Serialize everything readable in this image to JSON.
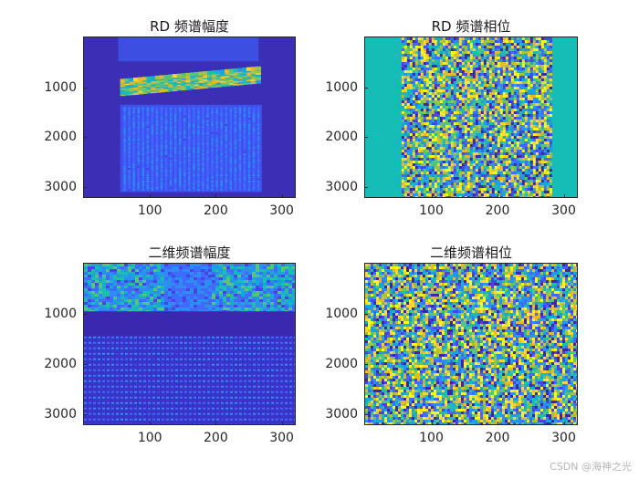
{
  "figure": {
    "watermark": "CSDN @海神之光"
  },
  "chart_data": [
    {
      "type": "heatmap",
      "title": "RD 频谱幅度",
      "xlim": [
        0,
        320
      ],
      "ylim": [
        3200,
        0
      ],
      "xticks": [
        100,
        200,
        300
      ],
      "yticks": [
        1000,
        2000,
        3000
      ],
      "colormap": "parula",
      "content": "magnitude"
    },
    {
      "type": "heatmap",
      "title": "RD 频谱相位",
      "xlim": [
        0,
        320
      ],
      "ylim": [
        3200,
        0
      ],
      "xticks": [
        100,
        200,
        300
      ],
      "yticks": [
        1000,
        2000,
        3000
      ],
      "colormap": "parula",
      "content": "phase"
    },
    {
      "type": "heatmap",
      "title": "二维频谱幅度",
      "xlim": [
        0,
        320
      ],
      "ylim": [
        3200,
        0
      ],
      "xticks": [
        100,
        200,
        300
      ],
      "yticks": [
        1000,
        2000,
        3000
      ],
      "colormap": "parula",
      "content": "magnitude"
    },
    {
      "type": "heatmap",
      "title": "二维频谱相位",
      "xlim": [
        0,
        320
      ],
      "ylim": [
        3200,
        0
      ],
      "xticks": [
        100,
        200,
        300
      ],
      "yticks": [
        1000,
        2000,
        3000
      ],
      "colormap": "parula",
      "content": "phase"
    }
  ]
}
